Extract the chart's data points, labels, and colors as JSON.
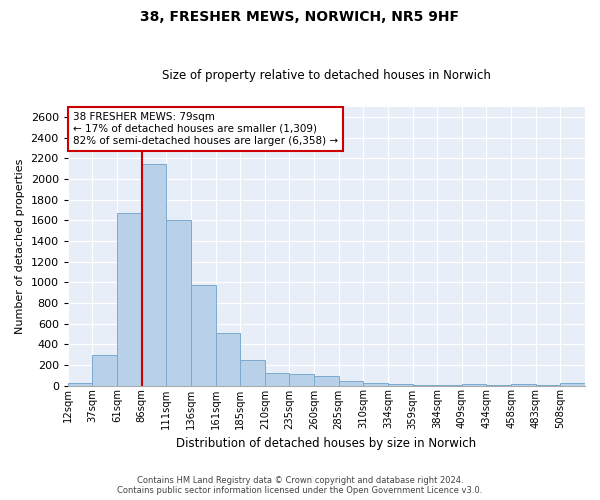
{
  "title1": "38, FRESHER MEWS, NORWICH, NR5 9HF",
  "title2": "Size of property relative to detached houses in Norwich",
  "xlabel": "Distribution of detached houses by size in Norwich",
  "ylabel": "Number of detached properties",
  "annotation_line1": "38 FRESHER MEWS: 79sqm",
  "annotation_line2": "← 17% of detached houses are smaller (1,309)",
  "annotation_line3": "82% of semi-detached houses are larger (6,358) →",
  "footer1": "Contains HM Land Registry data © Crown copyright and database right 2024.",
  "footer2": "Contains public sector information licensed under the Open Government Licence v3.0.",
  "property_size_bin": 3,
  "bar_color": "#b8d0e8",
  "bar_edge_color": "#7aaad0",
  "redline_color": "#cc0000",
  "background_color": "#e8eef8",
  "grid_color": "#ffffff",
  "categories": [
    "12sqm",
    "37sqm",
    "61sqm",
    "86sqm",
    "111sqm",
    "136sqm",
    "161sqm",
    "185sqm",
    "210sqm",
    "235sqm",
    "260sqm",
    "285sqm",
    "310sqm",
    "334sqm",
    "359sqm",
    "384sqm",
    "409sqm",
    "434sqm",
    "458sqm",
    "483sqm",
    "508sqm"
  ],
  "values": [
    20,
    300,
    1670,
    2150,
    1600,
    970,
    510,
    245,
    120,
    110,
    95,
    45,
    20,
    10,
    5,
    3,
    15,
    3,
    15,
    5,
    20
  ],
  "ylim": [
    0,
    2700
  ],
  "yticks": [
    0,
    200,
    400,
    600,
    800,
    1000,
    1200,
    1400,
    1600,
    1800,
    2000,
    2200,
    2400,
    2600
  ],
  "redline_x": 3.0,
  "n_bins": 21
}
